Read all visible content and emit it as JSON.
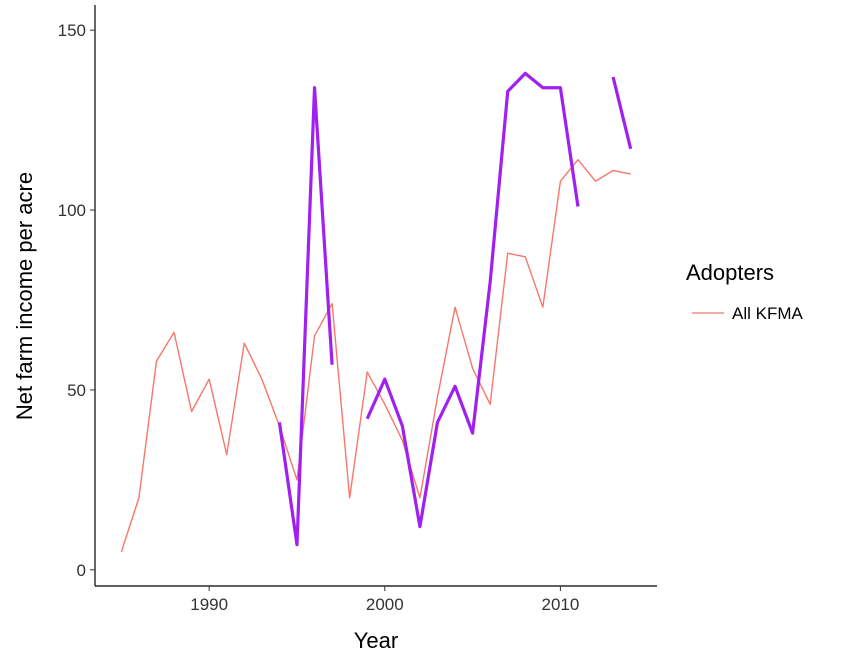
{
  "chart_data": {
    "type": "line",
    "xlabel": "Year",
    "ylabel": "Net farm income per acre",
    "xlim": [
      1983.5,
      2015.5
    ],
    "ylim": [
      -4.5,
      157
    ],
    "x_ticks": [
      1990,
      2000,
      2010
    ],
    "y_ticks": [
      0,
      50,
      100,
      150
    ],
    "grid": false,
    "legend": {
      "title": "Adopters",
      "position": "right",
      "entries": [
        "All KFMA"
      ]
    },
    "series": [
      {
        "name": "All KFMA",
        "color": "#F8766D",
        "segments": [
          [
            [
              1985,
              5
            ],
            [
              1986,
              20
            ],
            [
              1987,
              58
            ],
            [
              1988,
              66
            ],
            [
              1989,
              44
            ],
            [
              1990,
              53
            ],
            [
              1991,
              32
            ],
            [
              1992,
              63
            ],
            [
              1993,
              53
            ],
            [
              1994,
              40
            ],
            [
              1995,
              25
            ],
            [
              1996,
              65
            ],
            [
              1997,
              74
            ],
            [
              1998,
              20
            ],
            [
              1999,
              55
            ],
            [
              2000,
              46
            ],
            [
              2001,
              36
            ],
            [
              2002,
              20
            ],
            [
              2003,
              48
            ],
            [
              2004,
              73
            ],
            [
              2005,
              56
            ],
            [
              2006,
              46
            ],
            [
              2007,
              88
            ],
            [
              2008,
              87
            ],
            [
              2009,
              73
            ],
            [
              2010,
              108
            ],
            [
              2011,
              114
            ],
            [
              2012,
              108
            ],
            [
              2013,
              111
            ],
            [
              2014,
              110
            ]
          ]
        ]
      },
      {
        "color": "#A020F0",
        "segments": [
          [
            [
              1994,
              41
            ],
            [
              1995,
              7
            ],
            [
              1996,
              134
            ],
            [
              1997,
              57
            ]
          ],
          [
            [
              1999,
              42
            ],
            [
              2000,
              53
            ],
            [
              2001,
              40
            ],
            [
              2002,
              12
            ],
            [
              2003,
              41
            ],
            [
              2004,
              51
            ],
            [
              2005,
              38
            ],
            [
              2006,
              80
            ],
            [
              2007,
              133
            ],
            [
              2008,
              138
            ],
            [
              2009,
              134
            ],
            [
              2010,
              134
            ],
            [
              2011,
              101
            ]
          ],
          [
            [
              2013,
              137
            ],
            [
              2014,
              117
            ]
          ]
        ]
      }
    ]
  }
}
